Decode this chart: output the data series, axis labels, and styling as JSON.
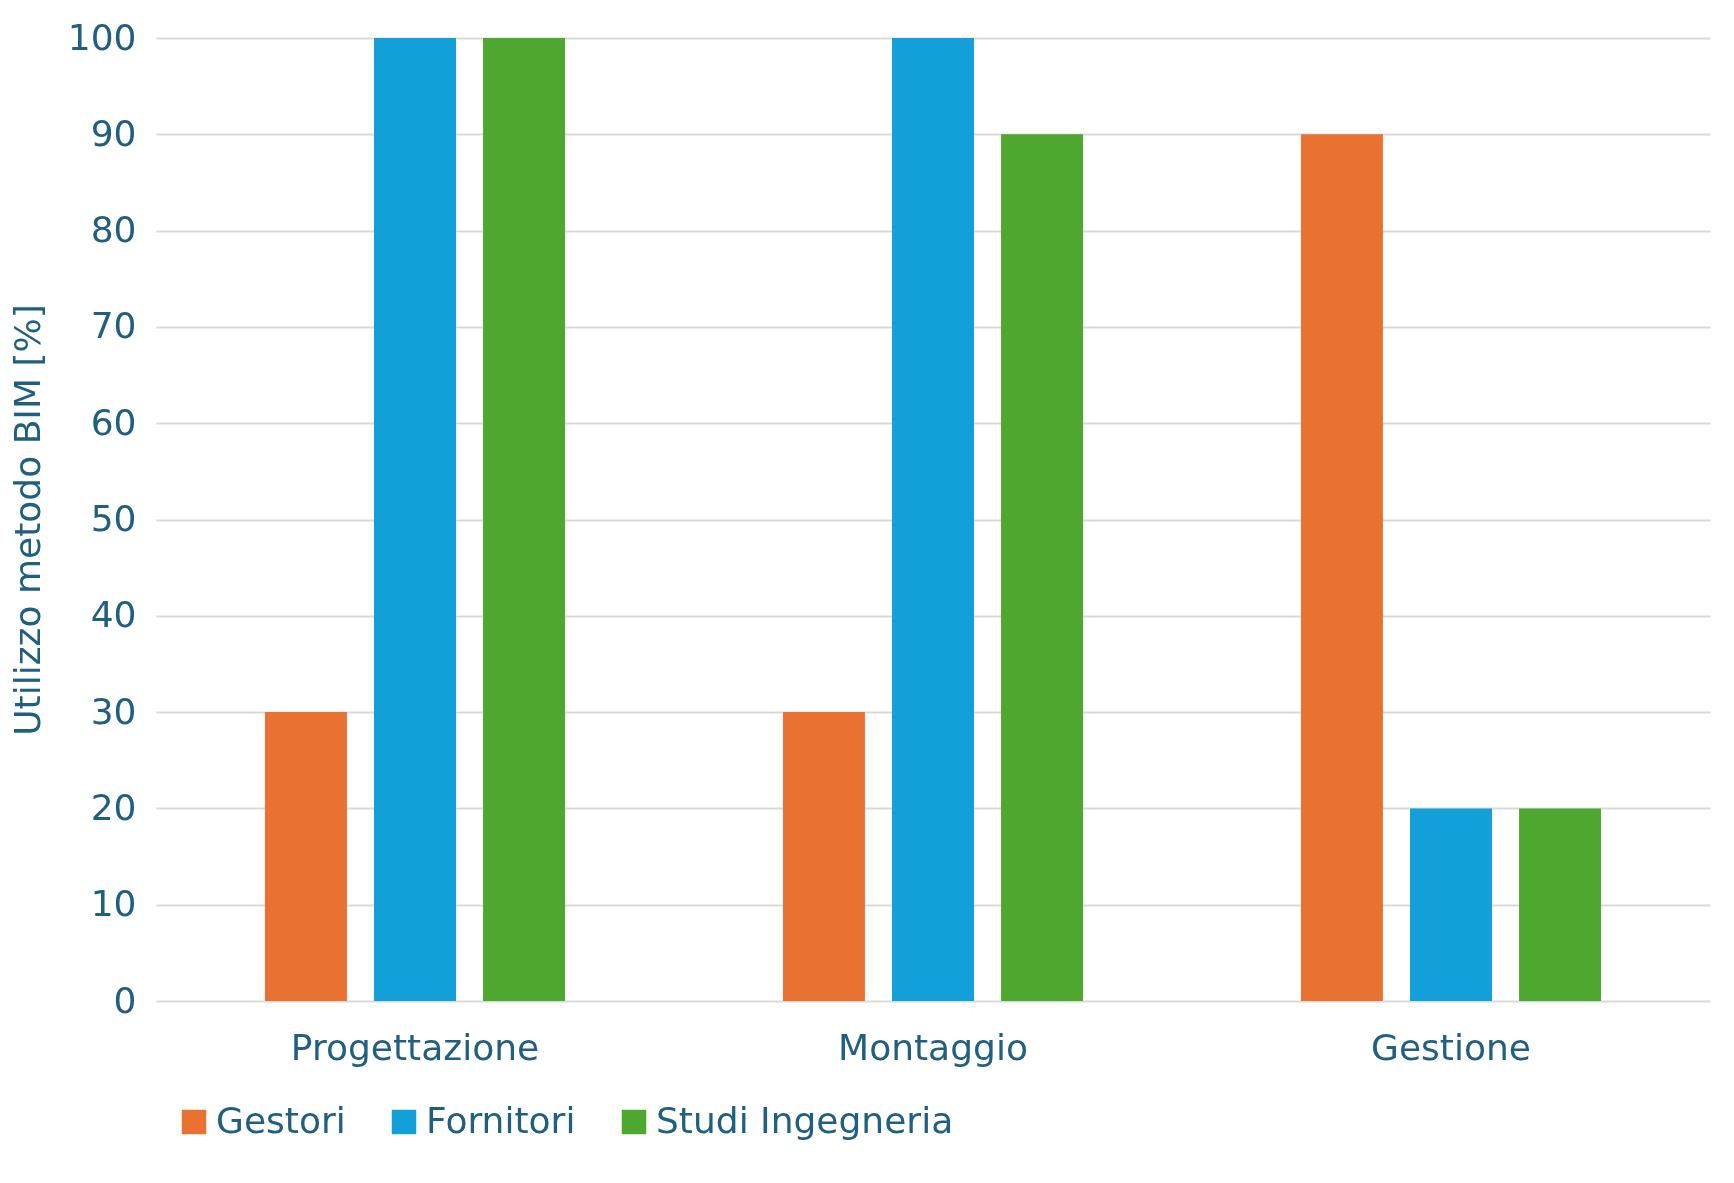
{
  "chart_data": {
    "type": "bar",
    "ylabel": "Utilizzo metodo BIM [%]",
    "categories": [
      "Progettazione",
      "Montaggio",
      "Gestione"
    ],
    "series": [
      {
        "name": "Gestori",
        "color": "#e97132",
        "values": [
          30,
          30,
          90
        ]
      },
      {
        "name": "Fornitori",
        "color": "#139fd7",
        "values": [
          100,
          100,
          20
        ]
      },
      {
        "name": "Studi Ingegneria",
        "color": "#4ea72e",
        "values": [
          100,
          90,
          20
        ]
      }
    ],
    "ylim": [
      0,
      100
    ],
    "yticks": [
      0,
      10,
      20,
      30,
      40,
      50,
      60,
      70,
      80,
      90,
      100
    ],
    "grid": "y",
    "legend": "bottom"
  }
}
